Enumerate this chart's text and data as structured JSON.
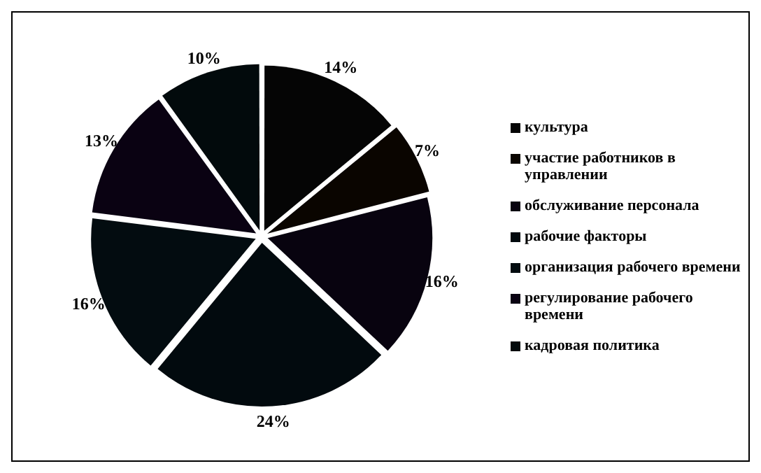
{
  "chart_data": {
    "type": "pie",
    "categories": [
      "культура",
      "участие работников в управлении",
      "обслуживание персонала",
      "рабочие факторы",
      "организация рабочего времени",
      "регулирование рабочего времени",
      "кадровая политика"
    ],
    "values": [
      14,
      7,
      16,
      24,
      16,
      13,
      10
    ],
    "value_labels": [
      "14%",
      "7%",
      "16%",
      "24%",
      "16%",
      "13%",
      "10%"
    ],
    "colors": [
      "#050505",
      "#0a0500",
      "#08030f",
      "#020a0e",
      "#030c10",
      "#0a0212",
      "#020a0c"
    ],
    "legend": "right"
  }
}
